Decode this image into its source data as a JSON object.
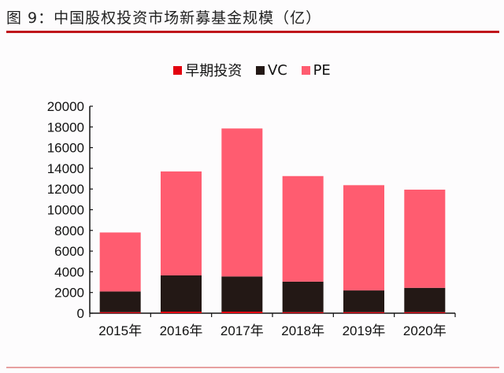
{
  "title": "图 9：中国股权投资市场新募基金规模（亿）",
  "chart_data": {
    "type": "bar",
    "stacked": true,
    "title": "图 9：中国股权投资市场新募基金规模（亿）",
    "categories": [
      "2015年",
      "2016年",
      "2017年",
      "2018年",
      "2019年",
      "2020年"
    ],
    "series": [
      {
        "name": "早期投资",
        "color": "#e3000f",
        "values": [
          100,
          150,
          150,
          100,
          100,
          100
        ]
      },
      {
        "name": "VC",
        "color": "#231815",
        "values": [
          2000,
          3500,
          3400,
          2950,
          2100,
          2350
        ]
      },
      {
        "name": "PE",
        "color": "#ff5c70",
        "values": [
          5700,
          10050,
          14300,
          10200,
          10170,
          9490
        ]
      }
    ],
    "ylim": [
      0,
      20000
    ],
    "yticks": [
      "0",
      "2000",
      "4000",
      "6000",
      "8000",
      "10000",
      "12000",
      "14000",
      "16000",
      "18000",
      "20000"
    ],
    "legend": "top",
    "grid": false
  }
}
